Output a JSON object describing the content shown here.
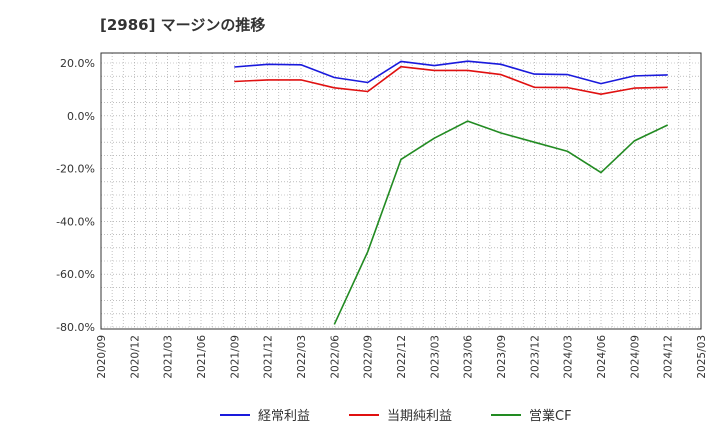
{
  "chart_data": {
    "type": "line",
    "title": "[2986]  マージンの推移",
    "xlabel": "",
    "ylabel": "",
    "ylim": [
      -80,
      20
    ],
    "y_ticks": [
      "20.0%",
      "0.0%",
      "-20.0%",
      "-40.0%",
      "-60.0%",
      "-80.0%"
    ],
    "y_tick_values": [
      20,
      0,
      -20,
      -40,
      -60,
      -80
    ],
    "x_ticks": [
      "2020/09",
      "2020/12",
      "2021/03",
      "2021/06",
      "2021/09",
      "2021/12",
      "2022/03",
      "2022/06",
      "2022/09",
      "2022/12",
      "2023/03",
      "2023/06",
      "2023/09",
      "2023/12",
      "2024/03",
      "2024/06",
      "2024/09",
      "2024/12",
      "2025/03"
    ],
    "grid": true,
    "legend_position": "bottom",
    "series": [
      {
        "name": "経常利益",
        "color": "#1a1adc",
        "points": [
          {
            "x": "2021/09",
            "y": 18.5
          },
          {
            "x": "2021/12",
            "y": 19.5
          },
          {
            "x": "2022/03",
            "y": 19.3
          },
          {
            "x": "2022/06",
            "y": 14.5
          },
          {
            "x": "2022/09",
            "y": 12.6
          },
          {
            "x": "2022/12",
            "y": 20.6
          },
          {
            "x": "2023/03",
            "y": 19.0
          },
          {
            "x": "2023/06",
            "y": 20.7
          },
          {
            "x": "2023/09",
            "y": 19.5
          },
          {
            "x": "2023/12",
            "y": 15.8
          },
          {
            "x": "2024/03",
            "y": 15.6
          },
          {
            "x": "2024/06",
            "y": 12.2
          },
          {
            "x": "2024/09",
            "y": 15.1
          },
          {
            "x": "2024/12",
            "y": 15.5
          }
        ]
      },
      {
        "name": "当期純利益",
        "color": "#e01010",
        "points": [
          {
            "x": "2021/09",
            "y": 13.0
          },
          {
            "x": "2021/12",
            "y": 13.6
          },
          {
            "x": "2022/03",
            "y": 13.6
          },
          {
            "x": "2022/06",
            "y": 10.6
          },
          {
            "x": "2022/09",
            "y": 9.2
          },
          {
            "x": "2022/12",
            "y": 18.6
          },
          {
            "x": "2023/03",
            "y": 17.2
          },
          {
            "x": "2023/06",
            "y": 17.2
          },
          {
            "x": "2023/09",
            "y": 15.6
          },
          {
            "x": "2023/12",
            "y": 10.8
          },
          {
            "x": "2024/03",
            "y": 10.7
          },
          {
            "x": "2024/06",
            "y": 8.2
          },
          {
            "x": "2024/09",
            "y": 10.5
          },
          {
            "x": "2024/12",
            "y": 10.8
          }
        ]
      },
      {
        "name": "営業CF",
        "color": "#228b22",
        "points": [
          {
            "x": "2022/06",
            "y": -79.0
          },
          {
            "x": "2022/09",
            "y": -51.5
          },
          {
            "x": "2022/12",
            "y": -16.5
          },
          {
            "x": "2023/03",
            "y": -8.5
          },
          {
            "x": "2023/06",
            "y": -2.0
          },
          {
            "x": "2023/09",
            "y": -6.5
          },
          {
            "x": "2023/12",
            "y": -10.0
          },
          {
            "x": "2024/03",
            "y": -13.5
          },
          {
            "x": "2024/06",
            "y": -21.5
          },
          {
            "x": "2024/09",
            "y": -9.5
          },
          {
            "x": "2024/12",
            "y": -3.5
          }
        ]
      }
    ]
  }
}
